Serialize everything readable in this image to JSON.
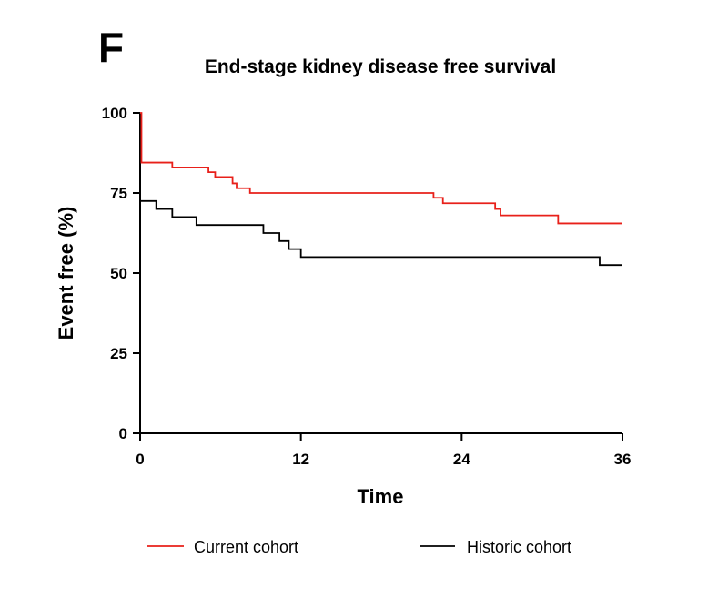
{
  "panel_letter": "F",
  "chart_data": {
    "type": "line",
    "title": "End-stage kidney disease free survival",
    "xlabel": "Time",
    "ylabel": "Event free (%)",
    "xlim": [
      0,
      36
    ],
    "ylim": [
      0,
      100
    ],
    "xticks": [
      0,
      12,
      24,
      36
    ],
    "yticks": [
      0,
      25,
      50,
      75,
      100
    ],
    "step": true,
    "legend_position": "bottom",
    "series": [
      {
        "name": "Current cohort",
        "color": "#e8201a",
        "x": [
          0,
          0.1,
          2.4,
          5.1,
          5.6,
          6.9,
          7.2,
          8.2,
          21.9,
          22.6,
          26.5,
          26.9,
          31.2,
          36
        ],
        "y": [
          100,
          84.5,
          83,
          81.5,
          80,
          78,
          76.5,
          75,
          73.5,
          71.8,
          70,
          68,
          65.5,
          65.5
        ]
      },
      {
        "name": "Historic cohort",
        "color": "#000000",
        "x": [
          0,
          1.2,
          2.4,
          4.2,
          9.2,
          10.4,
          11.1,
          12.0,
          34.3,
          36
        ],
        "y": [
          72.5,
          70,
          67.5,
          65,
          62.5,
          60,
          57.5,
          55,
          52.5,
          52.5
        ]
      }
    ]
  }
}
